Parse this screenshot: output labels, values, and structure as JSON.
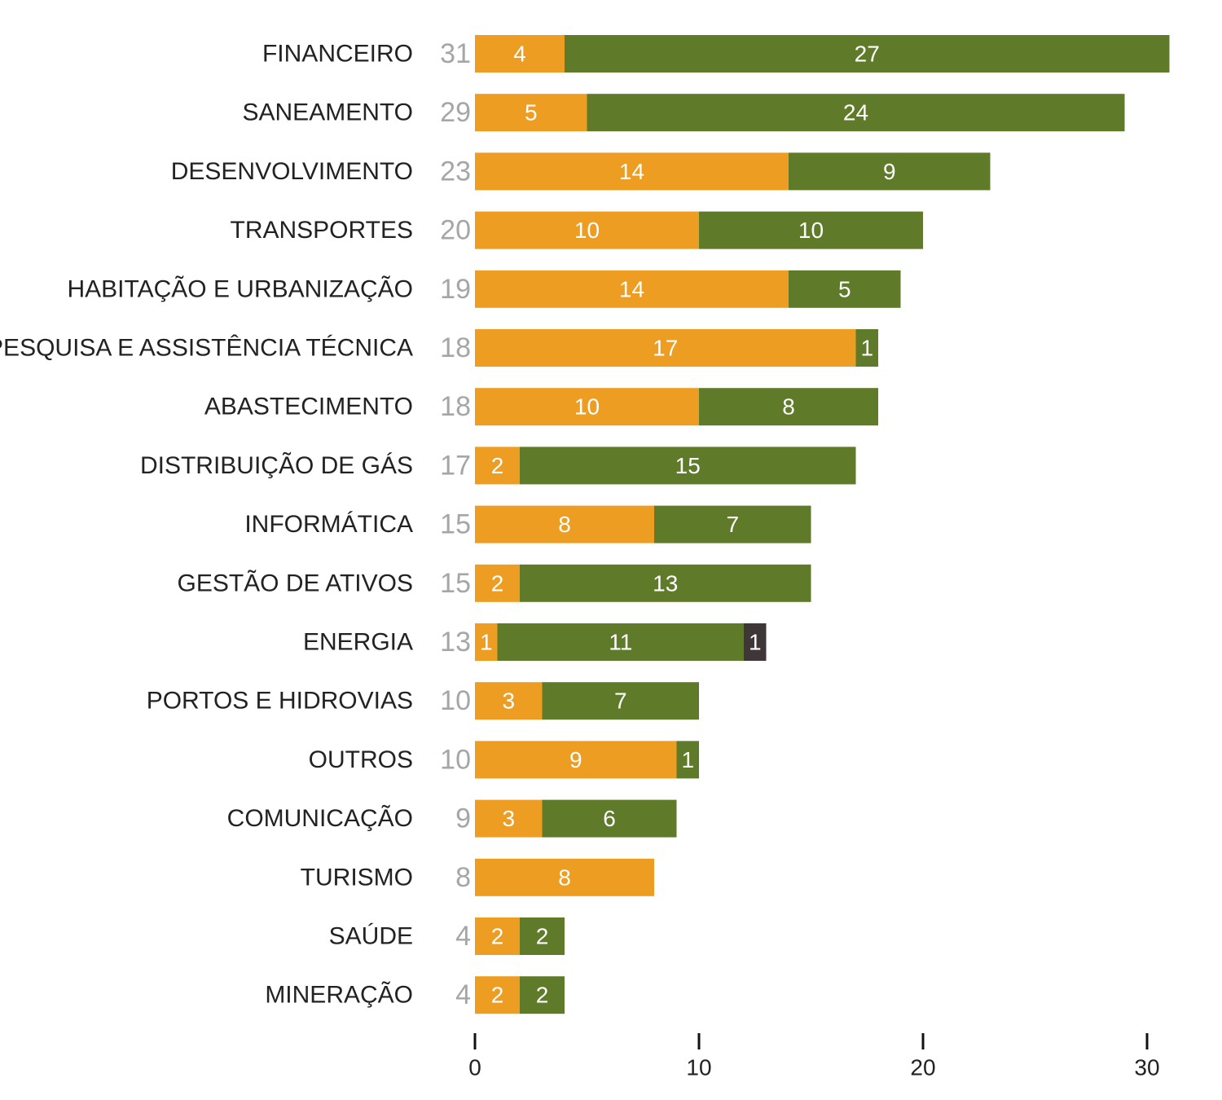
{
  "chart_data": {
    "type": "bar",
    "orientation": "horizontal",
    "stacked": true,
    "categories": [
      "FINANCEIRO",
      "SANEAMENTO",
      "DESENVOLVIMENTO",
      "TRANSPORTES",
      "HABITAÇÃO E URBANIZAÇÃO",
      "PESQUISA E ASSISTÊNCIA TÉCNICA",
      "ABASTECIMENTO",
      "DISTRIBUIÇÃO DE GÁS",
      "INFORMÁTICA",
      "GESTÃO DE ATIVOS",
      "ENERGIA",
      "PORTOS E HIDROVIAS",
      "OUTROS",
      "COMUNICAÇÃO",
      "TURISMO",
      "SAÚDE",
      "MINERAÇÃO"
    ],
    "totals": [
      31,
      29,
      23,
      20,
      19,
      18,
      18,
      17,
      15,
      15,
      13,
      10,
      10,
      9,
      8,
      4,
      4
    ],
    "series": [
      {
        "color": "#ec9d22",
        "values": [
          4,
          5,
          14,
          10,
          14,
          17,
          10,
          2,
          8,
          2,
          1,
          3,
          9,
          3,
          8,
          2,
          2
        ]
      },
      {
        "color": "#5f7b2a",
        "values": [
          27,
          24,
          9,
          10,
          5,
          1,
          8,
          15,
          7,
          13,
          11,
          7,
          1,
          6,
          0,
          2,
          2
        ]
      },
      {
        "color": "#3f3638",
        "values": [
          0,
          0,
          0,
          0,
          0,
          0,
          0,
          0,
          0,
          0,
          1,
          0,
          0,
          0,
          0,
          0,
          0
        ]
      }
    ],
    "xticks": [
      0,
      10,
      20,
      30
    ],
    "xlim": [
      0,
      31
    ],
    "title": "",
    "xlabel": "",
    "ylabel": "",
    "grid": false,
    "legend": "none"
  }
}
